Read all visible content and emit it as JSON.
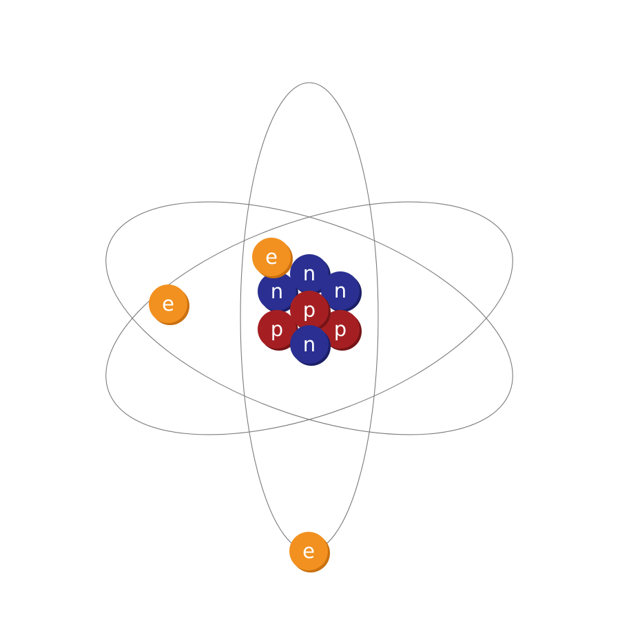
{
  "colors": {
    "electron": "#f29120",
    "electron_shadow": "#c9700f",
    "neutron": "#2a2f91",
    "neutron_shadow": "#1c1f66",
    "proton": "#a51f22",
    "proton_shadow": "#751416",
    "orbit": "#7a7a7a",
    "label": "#ffffff"
  },
  "orbits": [
    "orbit-vertical",
    "orbit-tilted-down",
    "orbit-tilted-up"
  ],
  "nucleus": [
    {
      "kind": "neutron",
      "label": "n"
    },
    {
      "kind": "neutron",
      "label": "n"
    },
    {
      "kind": "neutron",
      "label": "n"
    },
    {
      "kind": "proton",
      "label": "p"
    },
    {
      "kind": "proton",
      "label": "p"
    },
    {
      "kind": "proton",
      "label": "p"
    },
    {
      "kind": "neutron",
      "label": "n"
    }
  ],
  "electrons": [
    {
      "kind": "electron",
      "label": "e"
    },
    {
      "kind": "electron",
      "label": "e"
    },
    {
      "kind": "electron",
      "label": "e"
    }
  ]
}
